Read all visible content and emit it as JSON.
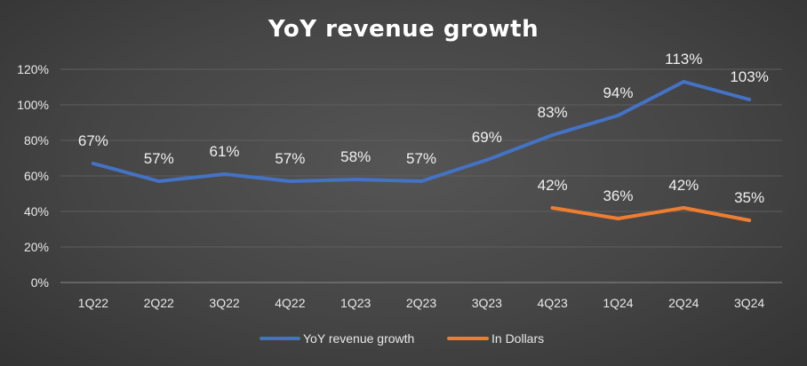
{
  "chart_data": {
    "type": "line",
    "title": "YoY revenue growth",
    "categories": [
      "1Q22",
      "2Q22",
      "3Q22",
      "4Q22",
      "1Q23",
      "2Q23",
      "3Q23",
      "4Q23",
      "1Q24",
      "2Q24",
      "3Q24"
    ],
    "series": [
      {
        "name": "YoY revenue growth",
        "color": "#4472C4",
        "values": [
          67,
          57,
          61,
          57,
          58,
          57,
          69,
          83,
          94,
          113,
          103
        ],
        "labels": [
          "67%",
          "57%",
          "61%",
          "57%",
          "58%",
          "57%",
          "69%",
          "83%",
          "94%",
          "113%",
          "103%"
        ]
      },
      {
        "name": "In Dollars",
        "color": "#ED7D31",
        "values": [
          null,
          null,
          null,
          null,
          null,
          null,
          null,
          42,
          36,
          42,
          35
        ],
        "labels": [
          null,
          null,
          null,
          null,
          null,
          null,
          null,
          "42%",
          "36%",
          "42%",
          "35%"
        ]
      }
    ],
    "yticks": [
      "0%",
      "20%",
      "40%",
      "60%",
      "80%",
      "100%",
      "120%"
    ],
    "ylim": [
      0,
      120
    ],
    "grid": true,
    "legend": "bottom"
  }
}
